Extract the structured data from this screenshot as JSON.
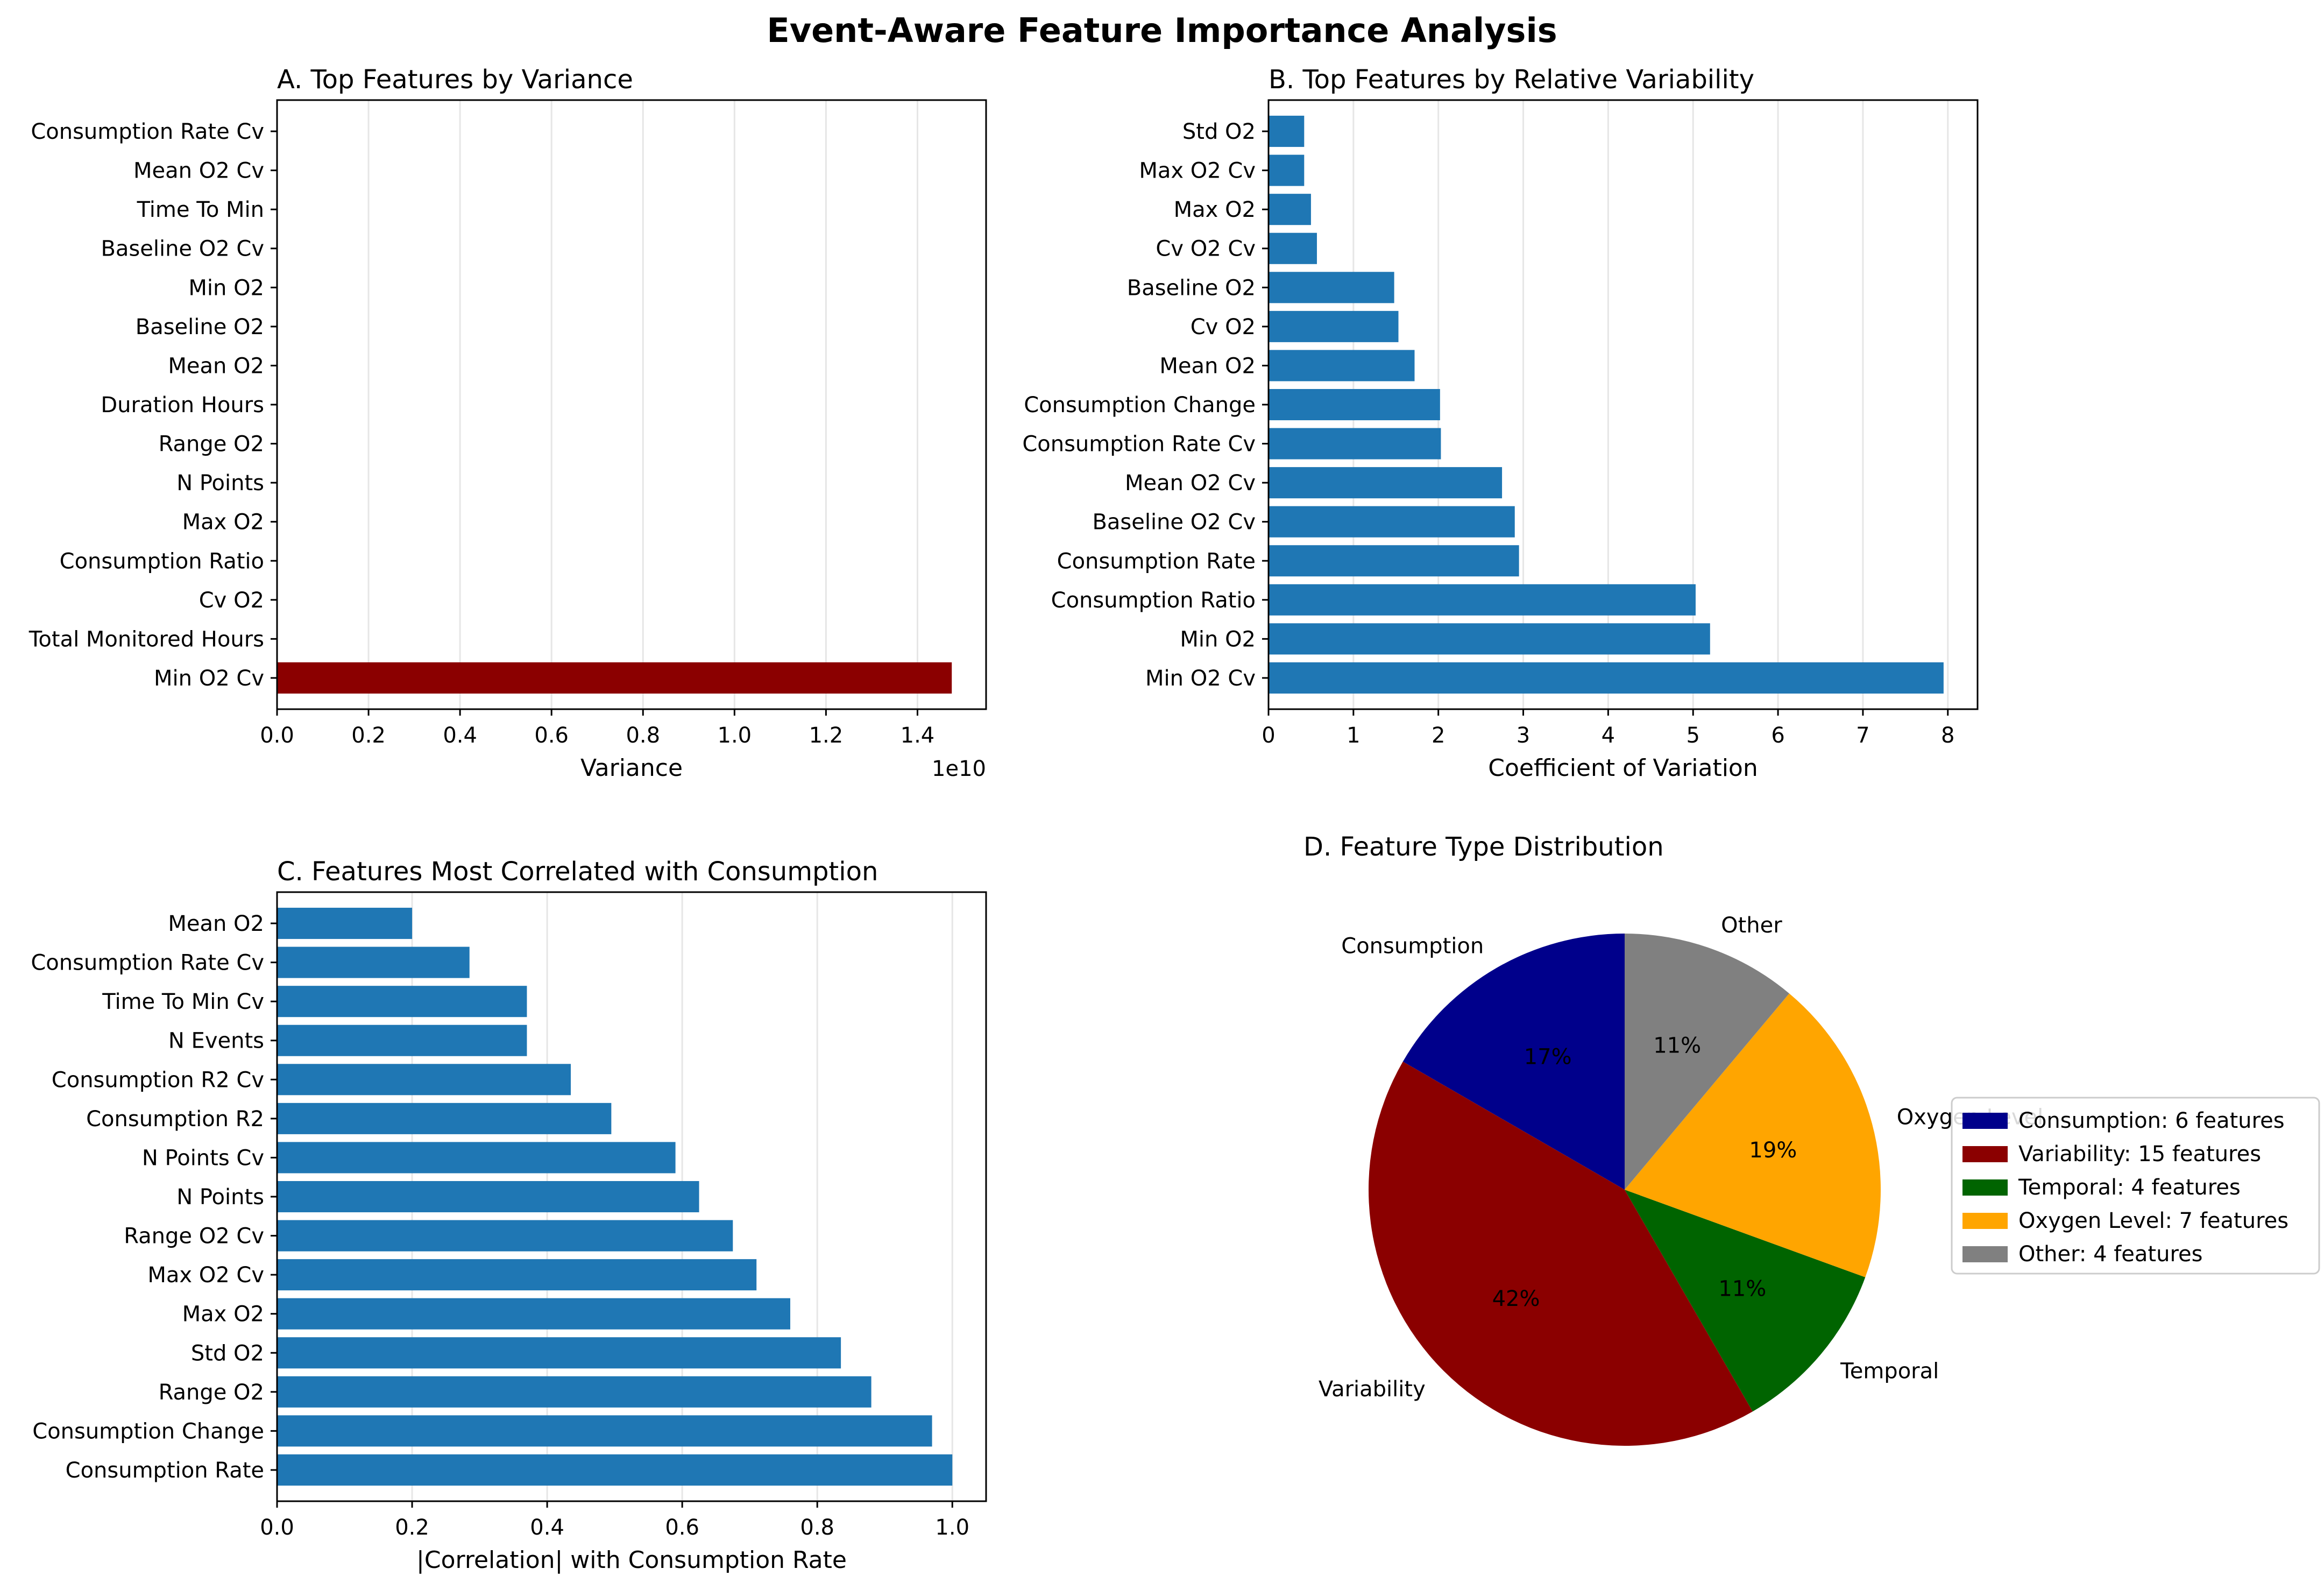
{
  "figure_title": "Event-Aware Feature Importance Analysis",
  "colors": {
    "bar_blue": "#1f77b4",
    "bar_highlight": "#8b0000",
    "grid": "#e6e6e6",
    "pie": [
      "#00008b",
      "#8b0000",
      "#006400",
      "#ffa500",
      "#808080"
    ]
  },
  "chart_data": [
    {
      "id": "A",
      "type": "bar",
      "orientation": "horizontal",
      "title": "A. Top Features by Variance",
      "xlabel": "Variance",
      "ylabel": "",
      "x_offset_label": "1e10",
      "xlim": [
        0,
        1.55
      ],
      "x_ticks": [
        0.0,
        0.2,
        0.4,
        0.6,
        0.8,
        1.0,
        1.2,
        1.4
      ],
      "x_tick_labels": [
        "0.0",
        "0.2",
        "0.4",
        "0.6",
        "0.8",
        "1.0",
        "1.2",
        "1.4"
      ],
      "grid": "x",
      "categories": [
        "Min O2 Cv",
        "Total Monitored Hours",
        "Cv O2",
        "Consumption Ratio",
        "Max O2",
        "N Points",
        "Range O2",
        "Duration Hours",
        "Mean O2",
        "Baseline O2",
        "Min O2",
        "Baseline O2 Cv",
        "Time To Min",
        "Mean O2 Cv",
        "Consumption Rate Cv"
      ],
      "values": [
        1.475,
        0,
        0,
        0,
        0,
        0,
        0,
        0,
        0,
        0,
        0,
        0,
        0,
        0,
        0
      ],
      "highlight_index": 0
    },
    {
      "id": "B",
      "type": "bar",
      "orientation": "horizontal",
      "title": "B. Top Features by Relative Variability",
      "xlabel": "Coefficient of Variation",
      "ylabel": "",
      "xlim": [
        0,
        8.35
      ],
      "x_ticks": [
        0,
        1,
        2,
        3,
        4,
        5,
        6,
        7,
        8
      ],
      "x_tick_labels": [
        "0",
        "1",
        "2",
        "3",
        "4",
        "5",
        "6",
        "7",
        "8"
      ],
      "grid": "x",
      "categories": [
        "Min O2 Cv",
        "Min O2",
        "Consumption Ratio",
        "Consumption Rate",
        "Baseline O2 Cv",
        "Mean O2 Cv",
        "Consumption Rate Cv",
        "Consumption Change",
        "Mean O2",
        "Cv O2",
        "Baseline O2",
        "Cv O2 Cv",
        "Max O2",
        "Max O2 Cv",
        "Std O2"
      ],
      "values": [
        7.95,
        5.2,
        5.03,
        2.95,
        2.9,
        2.75,
        2.03,
        2.02,
        1.72,
        1.53,
        1.48,
        0.57,
        0.5,
        0.42,
        0.42
      ]
    },
    {
      "id": "C",
      "type": "bar",
      "orientation": "horizontal",
      "title": "C. Features Most Correlated with Consumption",
      "xlabel": "|Correlation| with Consumption Rate",
      "ylabel": "",
      "xlim": [
        0,
        1.05
      ],
      "x_ticks": [
        0.0,
        0.2,
        0.4,
        0.6,
        0.8,
        1.0
      ],
      "x_tick_labels": [
        "0.0",
        "0.2",
        "0.4",
        "0.6",
        "0.8",
        "1.0"
      ],
      "grid": "x",
      "categories": [
        "Consumption Rate",
        "Consumption Change",
        "Range O2",
        "Std O2",
        "Max O2",
        "Max O2 Cv",
        "Range O2 Cv",
        "N Points",
        "N Points Cv",
        "Consumption R2",
        "Consumption R2 Cv",
        "N Events",
        "Time To Min Cv",
        "Consumption Rate Cv",
        "Mean O2"
      ],
      "values": [
        1.0,
        0.97,
        0.88,
        0.835,
        0.76,
        0.71,
        0.675,
        0.625,
        0.59,
        0.495,
        0.435,
        0.37,
        0.37,
        0.285,
        0.2
      ]
    },
    {
      "id": "D",
      "type": "pie",
      "title": "D. Feature Type Distribution",
      "labels": [
        "Consumption",
        "Variability",
        "Temporal",
        "Oxygen Level",
        "Other"
      ],
      "values": [
        6,
        15,
        4,
        7,
        4
      ],
      "pct_labels": [
        "17%",
        "42%",
        "11%",
        "19%",
        "11%"
      ],
      "start_angle_deg": 90,
      "direction": "counterclockwise",
      "legend": [
        "Consumption: 6 features",
        "Variability: 15 features",
        "Temporal: 4 features",
        "Oxygen Level: 7 features",
        "Other: 4 features"
      ],
      "legend_placement": "right"
    }
  ]
}
